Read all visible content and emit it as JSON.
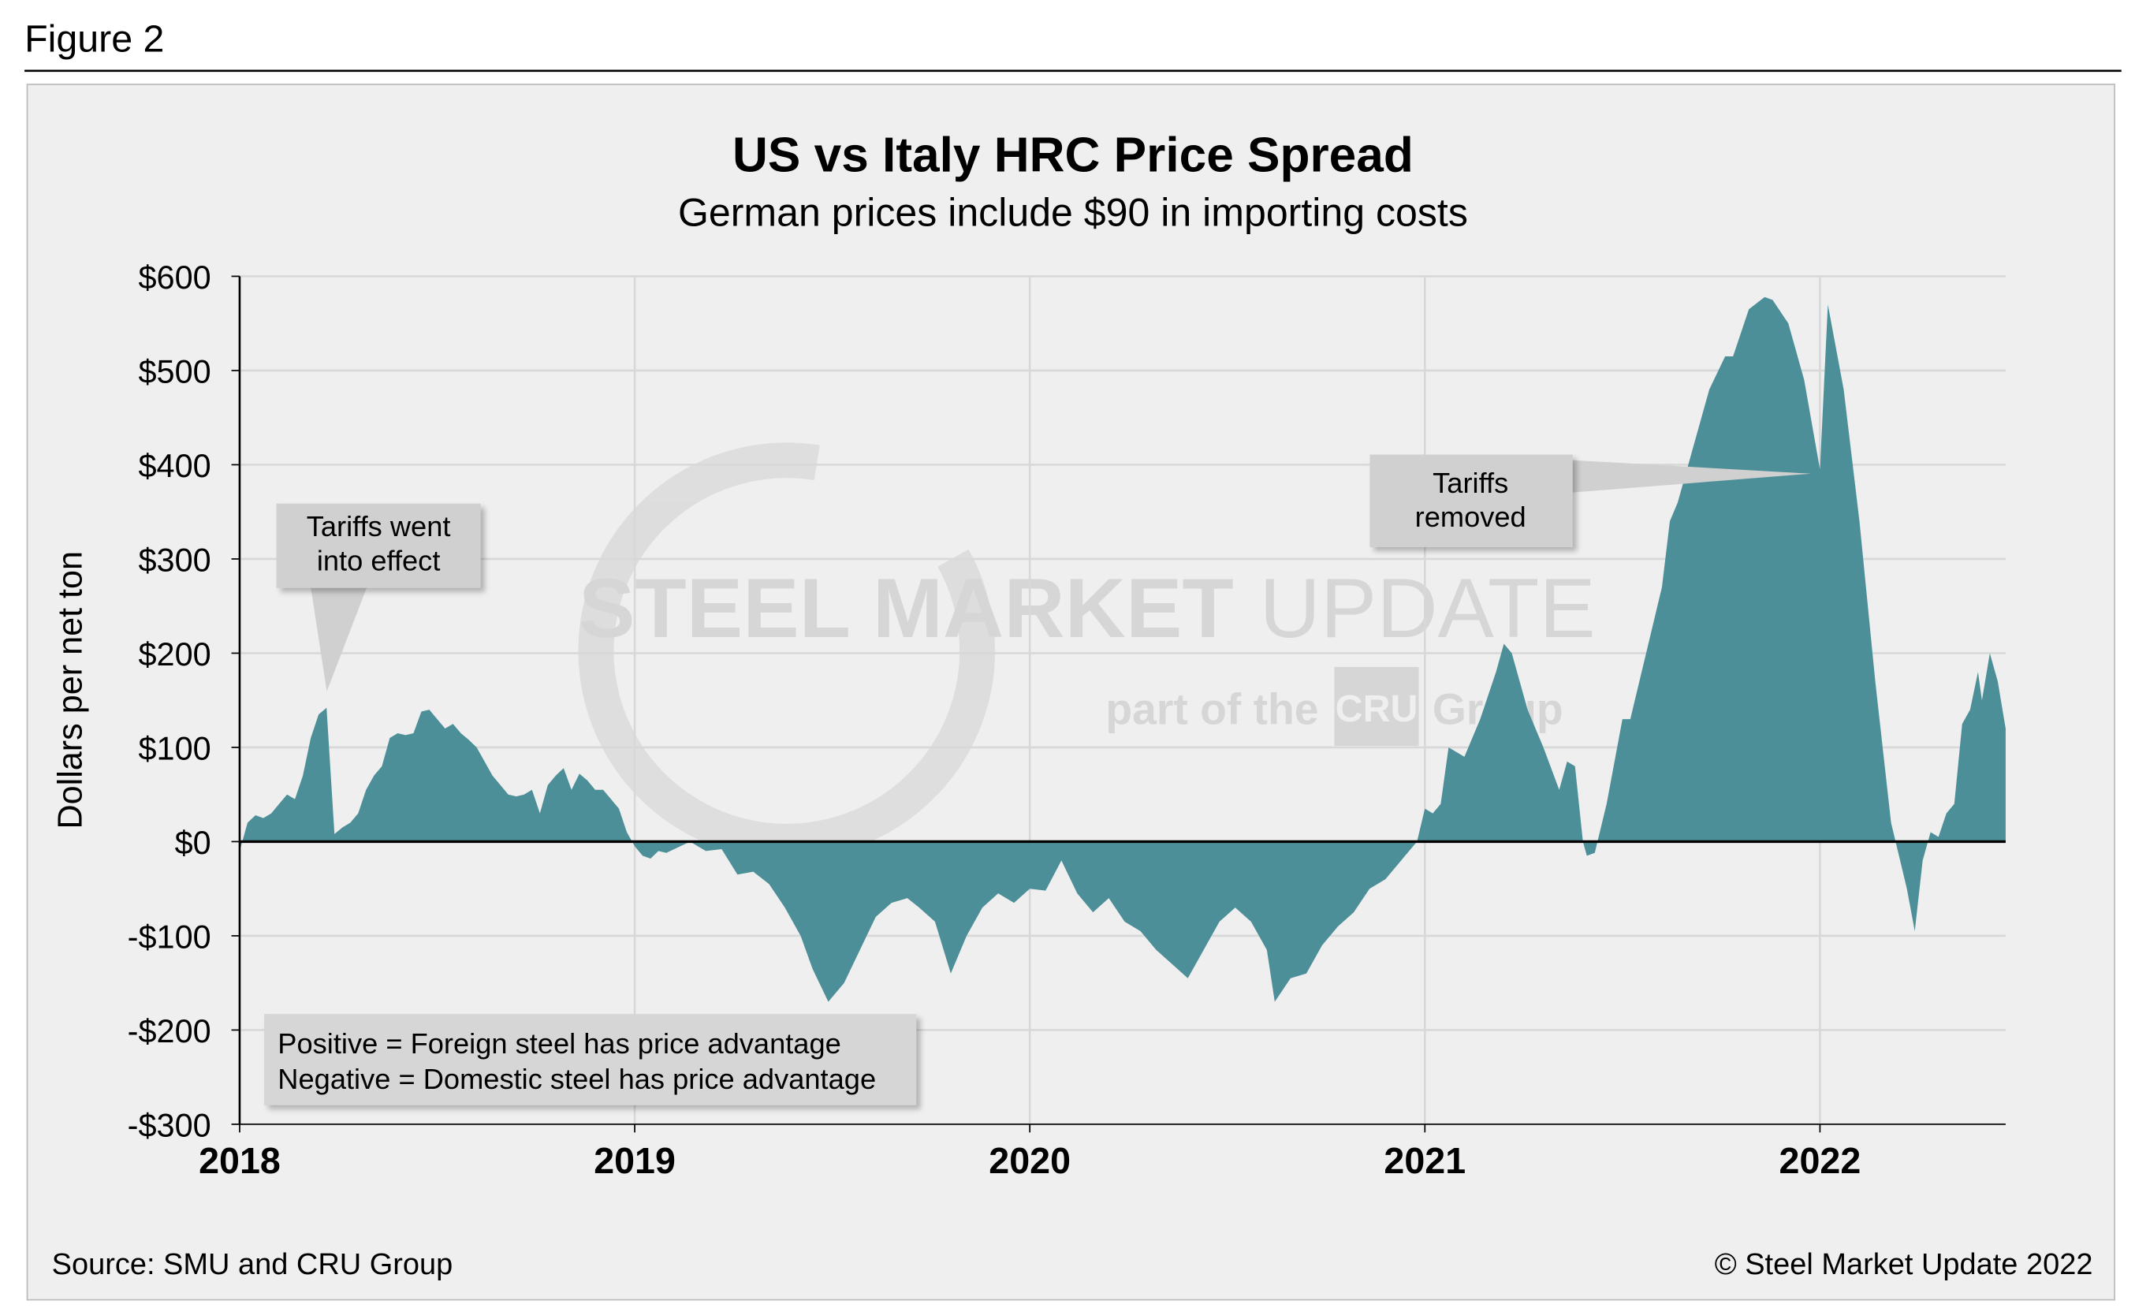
{
  "figure_label": "Figure 2",
  "source": "Source: SMU and CRU Group",
  "copyright": "© Steel Market Update 2022",
  "watermark": {
    "brand": "STEEL MARKET",
    "brand2": "UPDATE",
    "tagline": "part of the",
    "cru": "CRU",
    "group": "Group"
  },
  "chart_data": {
    "type": "area",
    "title": "US vs Italy HRC Price Spread",
    "subtitle": "German prices include $90 in importing costs",
    "y_label": "Dollars per net ton",
    "color": "#4d8f98",
    "grid": true,
    "xlim": [
      2018,
      2022.47
    ],
    "xticks": [
      2018,
      2019,
      2020,
      2021,
      2022
    ],
    "ylim": [
      -300,
      600
    ],
    "yticks": [
      {
        "value": -300,
        "label": "-$300"
      },
      {
        "value": -200,
        "label": "-$200"
      },
      {
        "value": -100,
        "label": "-$100"
      },
      {
        "value": 0,
        "label": "$0"
      },
      {
        "value": 100,
        "label": "$100"
      },
      {
        "value": 200,
        "label": "$200"
      },
      {
        "value": 300,
        "label": "$300"
      },
      {
        "value": 400,
        "label": "$400"
      },
      {
        "value": 500,
        "label": "$500"
      },
      {
        "value": 600,
        "label": "$600"
      }
    ],
    "x": [
      2018.0,
      2018.02,
      2018.04,
      2018.06,
      2018.08,
      2018.1,
      2018.12,
      2018.14,
      2018.16,
      2018.18,
      2018.2,
      2018.22,
      2018.24,
      2018.26,
      2018.28,
      2018.3,
      2018.32,
      2018.34,
      2018.36,
      2018.38,
      2018.4,
      2018.42,
      2018.44,
      2018.46,
      2018.48,
      2018.5,
      2018.52,
      2018.54,
      2018.56,
      2018.58,
      2018.6,
      2018.62,
      2018.64,
      2018.66,
      2018.68,
      2018.7,
      2018.72,
      2018.74,
      2018.76,
      2018.78,
      2018.8,
      2018.82,
      2018.84,
      2018.86,
      2018.88,
      2018.9,
      2018.92,
      2018.94,
      2018.96,
      2018.98,
      2019.0,
      2019.02,
      2019.04,
      2019.06,
      2019.08,
      2019.1,
      2019.14,
      2019.18,
      2019.22,
      2019.26,
      2019.3,
      2019.34,
      2019.38,
      2019.42,
      2019.45,
      2019.49,
      2019.53,
      2019.57,
      2019.61,
      2019.65,
      2019.69,
      2019.72,
      2019.76,
      2019.8,
      2019.84,
      2019.88,
      2019.92,
      2019.96,
      2020.0,
      2020.04,
      2020.08,
      2020.12,
      2020.16,
      2020.2,
      2020.24,
      2020.28,
      2020.32,
      2020.36,
      2020.4,
      2020.44,
      2020.48,
      2020.52,
      2020.56,
      2020.6,
      2020.62,
      2020.66,
      2020.7,
      2020.74,
      2020.78,
      2020.82,
      2020.86,
      2020.9,
      2020.94,
      2020.98,
      2021.0,
      2021.02,
      2021.04,
      2021.06,
      2021.08,
      2021.1,
      2021.14,
      2021.18,
      2021.2,
      2021.22,
      2021.26,
      2021.3,
      2021.34,
      2021.36,
      2021.38,
      2021.4,
      2021.41,
      2021.43,
      2021.46,
      2021.5,
      2021.52,
      2021.56,
      2021.6,
      2021.62,
      2021.64,
      2021.68,
      2021.72,
      2021.76,
      2021.78,
      2021.82,
      2021.86,
      2021.88,
      2021.92,
      2021.96,
      2022.0,
      2022.02,
      2022.06,
      2022.1,
      2022.14,
      2022.18,
      2022.22,
      2022.24,
      2022.26,
      2022.28,
      2022.3,
      2022.32,
      2022.34,
      2022.36,
      2022.38,
      2022.4,
      2022.41,
      2022.43,
      2022.45,
      2022.47
    ],
    "values": [
      -10,
      20,
      28,
      25,
      30,
      40,
      50,
      45,
      70,
      110,
      135,
      142,
      8,
      15,
      20,
      30,
      55,
      70,
      80,
      110,
      115,
      113,
      115,
      138,
      140,
      130,
      120,
      125,
      115,
      108,
      100,
      85,
      70,
      60,
      50,
      48,
      50,
      55,
      30,
      60,
      70,
      78,
      55,
      72,
      65,
      55,
      55,
      45,
      35,
      10,
      -5,
      -15,
      -18,
      -10,
      -12,
      -8,
      0,
      -10,
      -8,
      -35,
      -32,
      -45,
      -70,
      -100,
      -135,
      -170,
      -150,
      -115,
      -80,
      -65,
      -60,
      -70,
      -85,
      -140,
      -100,
      -70,
      -55,
      -65,
      -50,
      -52,
      -20,
      -55,
      -75,
      -60,
      -85,
      -95,
      -115,
      -130,
      -145,
      -115,
      -85,
      -70,
      -85,
      -115,
      -170,
      -145,
      -140,
      -110,
      -90,
      -75,
      -50,
      -40,
      -20,
      0,
      35,
      30,
      40,
      100,
      95,
      90,
      130,
      180,
      210,
      200,
      140,
      100,
      55,
      85,
      80,
      0,
      -15,
      -12,
      40,
      130,
      130,
      200,
      270,
      340,
      360,
      420,
      480,
      515,
      515,
      565,
      578,
      575,
      550,
      490,
      395,
      570,
      480,
      340,
      170,
      20,
      -50,
      -95,
      -20,
      10,
      5,
      30,
      40,
      125,
      140,
      180,
      150,
      200,
      170,
      120
    ],
    "annotations": [
      {
        "lines": [
          "Tariffs went",
          "into effect"
        ]
      },
      {
        "lines": [
          "Tariffs",
          "removed"
        ]
      }
    ],
    "note": [
      "Positive = Foreign steel has price advantage",
      "Negative = Domestic steel has price advantage"
    ]
  }
}
